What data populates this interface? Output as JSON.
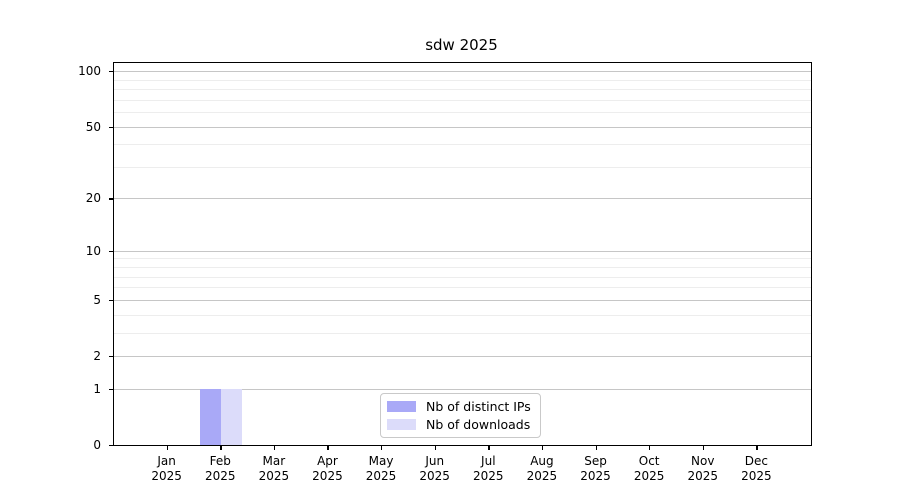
{
  "title": "sdw 2025",
  "chart_data": {
    "type": "bar",
    "title": "sdw 2025",
    "categories": [
      "Jan",
      "Feb",
      "Mar",
      "Apr",
      "May",
      "Jun",
      "Jul",
      "Aug",
      "Sep",
      "Oct",
      "Nov",
      "Dec"
    ],
    "category_year": "2025",
    "series": [
      {
        "name": "Nb of distinct IPs",
        "color": "#a9a9f7",
        "values": [
          0,
          1,
          0,
          0,
          0,
          0,
          0,
          0,
          0,
          0,
          0,
          0
        ]
      },
      {
        "name": "Nb of downloads",
        "color": "#dcdcfa",
        "values": [
          0,
          1,
          0,
          0,
          0,
          0,
          0,
          0,
          0,
          0,
          0,
          0
        ]
      }
    ],
    "yscale": "log1p",
    "yticks": [
      0,
      1,
      2,
      5,
      10,
      20,
      50,
      100
    ],
    "yticks_minor": [
      3,
      4,
      6,
      7,
      8,
      9,
      30,
      40,
      60,
      70,
      80,
      90
    ],
    "ylim": [
      0,
      110.7
    ],
    "xlabel": "",
    "ylabel": "",
    "grid": "horizontal major+minor",
    "legend_position": "lower-center-inside"
  },
  "colors": {
    "bar_distinct_ips": "#a9a9f7",
    "bar_downloads": "#dcdcfa",
    "major_grid": "#c6c6c6",
    "minor_grid": "#ededed",
    "spine": "#000000",
    "background": "#ffffff"
  }
}
